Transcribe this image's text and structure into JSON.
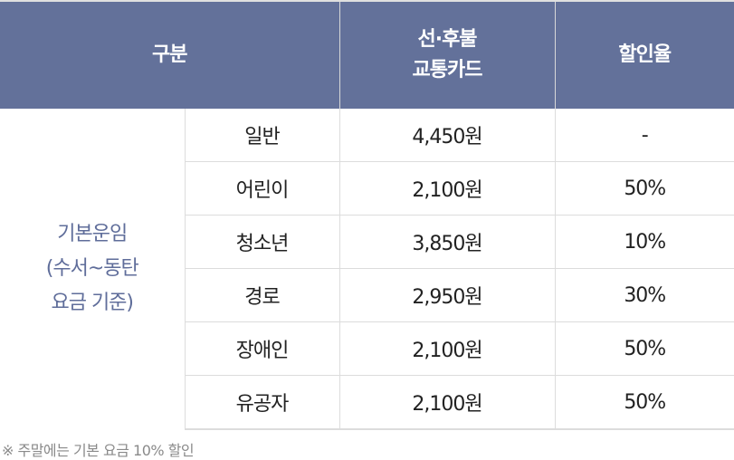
{
  "header": {
    "category": "구분",
    "card_line1": "선·후불",
    "card_line2": "교통카드",
    "discount": "할인율"
  },
  "group": {
    "line1": "기본운임",
    "line2": "(수서~동탄",
    "line3": "요금 기준)"
  },
  "rows": [
    {
      "type": "일반",
      "fare": "4,450원",
      "discount": "-"
    },
    {
      "type": "어린이",
      "fare": "2,100원",
      "discount": "50%"
    },
    {
      "type": "청소년",
      "fare": "3,850원",
      "discount": "10%"
    },
    {
      "type": "경로",
      "fare": "2,950원",
      "discount": "30%"
    },
    {
      "type": "장애인",
      "fare": "2,100원",
      "discount": "50%"
    },
    {
      "type": "유공자",
      "fare": "2,100원",
      "discount": "50%"
    }
  ],
  "note": "※ 주말에는 기본 요금 10% 할인",
  "colors": {
    "header_bg": "#63719a",
    "group_text": "#5f6d9a"
  }
}
